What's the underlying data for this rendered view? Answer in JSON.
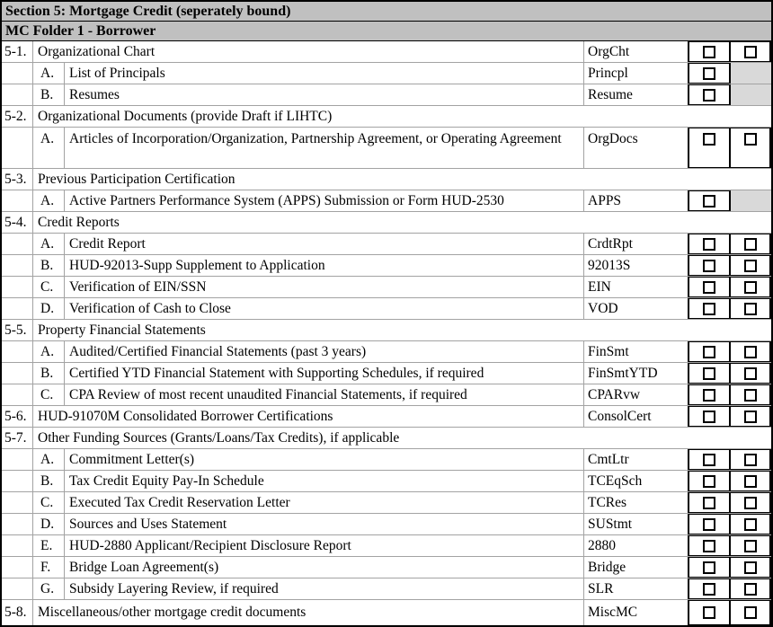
{
  "table": {
    "title": "Section 5: Mortgage Credit (seperately bound)",
    "subtitle": "MC Folder 1 - Borrower",
    "checkbox_columns": 2,
    "checkbox_state": "unchecked",
    "colors": {
      "header_background": "#c0c0c0",
      "shaded_cell": "#d9d9d9",
      "grid_line": "#a3a3a3",
      "border": "#000000"
    },
    "rows": [
      {
        "kind": "main",
        "num": "5-1.",
        "desc": "Organizational Chart",
        "code": "OrgCht",
        "box1": "checkbox",
        "box2": "checkbox"
      },
      {
        "kind": "sub",
        "num": "",
        "letter": "A.",
        "desc": "List of Principals",
        "code": "Princpl",
        "box1": "checkbox",
        "box2": "shaded"
      },
      {
        "kind": "sub",
        "num": "",
        "letter": "B.",
        "desc": "Resumes",
        "code": "Resume",
        "box1": "checkbox",
        "box2": "shaded"
      },
      {
        "kind": "section",
        "num": "5-2.",
        "desc": "Organizational Documents (provide Draft if LIHTC)"
      },
      {
        "kind": "sub",
        "num": "",
        "letter": "A.",
        "desc": "Articles of Incorporation/Organization, Partnership Agreement, or Operating Agreement",
        "code": "OrgDocs",
        "box1": "checkbox",
        "box2": "checkbox",
        "tall": true
      },
      {
        "kind": "section",
        "num": "5-3.",
        "desc": "Previous Participation Certification"
      },
      {
        "kind": "sub",
        "num": "",
        "letter": "A.",
        "desc": "Active Partners Performance System (APPS) Submission or Form HUD-2530",
        "code": "APPS",
        "box1": "checkbox",
        "box2": "shaded"
      },
      {
        "kind": "section",
        "num": "5-4.",
        "desc": "Credit Reports"
      },
      {
        "kind": "sub",
        "num": "",
        "letter": "A.",
        "desc": "Credit Report",
        "code": "CrdtRpt",
        "box1": "checkbox",
        "box2": "checkbox"
      },
      {
        "kind": "sub",
        "num": "",
        "letter": "B.",
        "desc": "HUD-92013-Supp Supplement to Application",
        "code": "92013S",
        "box1": "checkbox",
        "box2": "checkbox"
      },
      {
        "kind": "sub",
        "num": "",
        "letter": "C.",
        "desc": "Verification of EIN/SSN",
        "code": "EIN",
        "box1": "checkbox",
        "box2": "checkbox"
      },
      {
        "kind": "sub",
        "num": "",
        "letter": "D.",
        "desc": "Verification of Cash to Close",
        "code": "VOD",
        "box1": "checkbox",
        "box2": "checkbox"
      },
      {
        "kind": "section",
        "num": "5-5.",
        "desc": "Property Financial Statements"
      },
      {
        "kind": "sub",
        "num": "",
        "letter": "A.",
        "desc": "Audited/Certified Financial Statements (past 3 years)",
        "code": "FinSmt",
        "box1": "checkbox",
        "box2": "checkbox"
      },
      {
        "kind": "sub",
        "num": "",
        "letter": "B.",
        "desc": "Certified YTD Financial Statement with Supporting Schedules, if required",
        "code": "FinSmtYTD",
        "box1": "checkbox",
        "box2": "checkbox"
      },
      {
        "kind": "sub",
        "num": "",
        "letter": "C.",
        "desc": "CPA Review of most recent unaudited Financial Statements, if required",
        "code": "CPARvw",
        "box1": "checkbox",
        "box2": "checkbox"
      },
      {
        "kind": "main",
        "num": "5-6.",
        "desc": "HUD-91070M Consolidated Borrower Certifications",
        "code": "ConsolCert",
        "box1": "checkbox",
        "box2": "checkbox"
      },
      {
        "kind": "section",
        "num": "5-7.",
        "desc": "Other Funding Sources (Grants/Loans/Tax Credits), if applicable"
      },
      {
        "kind": "sub",
        "num": "",
        "letter": "A.",
        "desc": "Commitment Letter(s)",
        "code": "CmtLtr",
        "box1": "checkbox",
        "box2": "checkbox"
      },
      {
        "kind": "sub",
        "num": "",
        "letter": "B.",
        "desc": "Tax Credit Equity Pay-In Schedule",
        "code": "TCEqSch",
        "box1": "checkbox",
        "box2": "checkbox"
      },
      {
        "kind": "sub",
        "num": "",
        "letter": "C.",
        "desc": "Executed Tax Credit Reservation Letter",
        "code": "TCRes",
        "box1": "checkbox",
        "box2": "checkbox"
      },
      {
        "kind": "sub",
        "num": "",
        "letter": "D.",
        "desc": "Sources and Uses Statement",
        "code": "SUStmt",
        "box1": "checkbox",
        "box2": "checkbox"
      },
      {
        "kind": "sub",
        "num": "",
        "letter": "E.",
        "desc": "HUD-2880 Applicant/Recipient Disclosure Report",
        "code": "2880",
        "box1": "checkbox",
        "box2": "checkbox"
      },
      {
        "kind": "sub",
        "num": "",
        "letter": "F.",
        "desc": "Bridge Loan Agreement(s)",
        "code": "Bridge",
        "box1": "checkbox",
        "box2": "checkbox"
      },
      {
        "kind": "sub",
        "num": "",
        "letter": "G.",
        "desc": "Subsidy Layering Review, if required",
        "code": "SLR",
        "box1": "checkbox",
        "box2": "checkbox"
      },
      {
        "kind": "main",
        "num": "5-8.",
        "desc": "Miscellaneous/other mortgage credit documents",
        "code": "MiscMC",
        "box1": "checkbox",
        "box2": "checkbox"
      }
    ]
  }
}
